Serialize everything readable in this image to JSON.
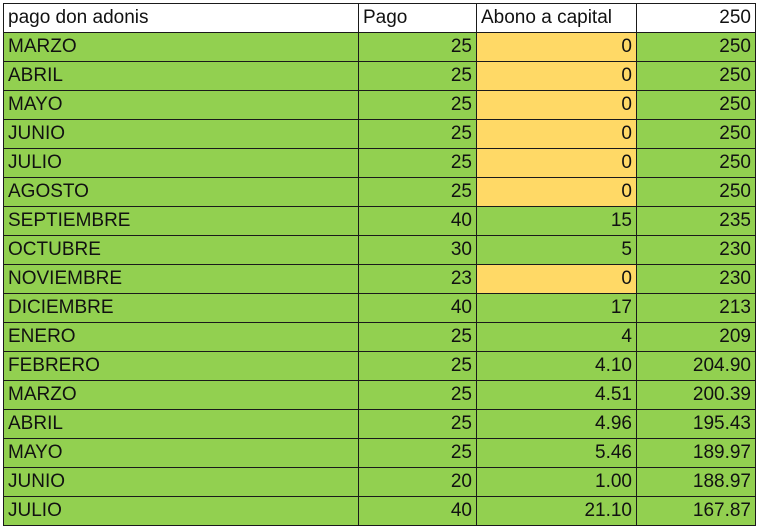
{
  "header": {
    "name": "pago don adonis",
    "pago": "Pago",
    "abono": "Abono a capital",
    "saldo": "250"
  },
  "colors": {
    "row_green": "#92d050",
    "highlight_yellow": "#ffd966",
    "header_white": "#ffffff"
  },
  "rows": [
    {
      "month": "MARZO",
      "pago": "25",
      "abono": "0",
      "saldo": "250",
      "highlight": true
    },
    {
      "month": "ABRIL",
      "pago": "25",
      "abono": "0",
      "saldo": "250",
      "highlight": true
    },
    {
      "month": "MAYO",
      "pago": "25",
      "abono": "0",
      "saldo": "250",
      "highlight": true
    },
    {
      "month": "JUNIO",
      "pago": "25",
      "abono": "0",
      "saldo": "250",
      "highlight": true
    },
    {
      "month": "JULIO",
      "pago": "25",
      "abono": "0",
      "saldo": "250",
      "highlight": true
    },
    {
      "month": "AGOSTO",
      "pago": "25",
      "abono": "0",
      "saldo": "250",
      "highlight": true
    },
    {
      "month": "SEPTIEMBRE",
      "pago": "40",
      "abono": "15",
      "saldo": "235",
      "highlight": false
    },
    {
      "month": "OCTUBRE",
      "pago": "30",
      "abono": "5",
      "saldo": "230",
      "highlight": false
    },
    {
      "month": "NOVIEMBRE",
      "pago": "23",
      "abono": "0",
      "saldo": "230",
      "highlight": true
    },
    {
      "month": "DICIEMBRE",
      "pago": "40",
      "abono": "17",
      "saldo": "213",
      "highlight": false
    },
    {
      "month": "ENERO",
      "pago": "25",
      "abono": "4",
      "saldo": "209",
      "highlight": false
    },
    {
      "month": "FEBRERO",
      "pago": "25",
      "abono": "4.10",
      "saldo": "204.90",
      "highlight": false
    },
    {
      "month": "MARZO",
      "pago": "25",
      "abono": "4.51",
      "saldo": "200.39",
      "highlight": false
    },
    {
      "month": "ABRIL",
      "pago": "25",
      "abono": "4.96",
      "saldo": "195.43",
      "highlight": false
    },
    {
      "month": "MAYO",
      "pago": "25",
      "abono": "5.46",
      "saldo": "189.97",
      "highlight": false
    },
    {
      "month": "JUNIO",
      "pago": "20",
      "abono": "1.00",
      "saldo": "188.97",
      "highlight": false
    },
    {
      "month": "JULIO",
      "pago": "40",
      "abono": "21.10",
      "saldo": "167.87",
      "highlight": false
    }
  ]
}
